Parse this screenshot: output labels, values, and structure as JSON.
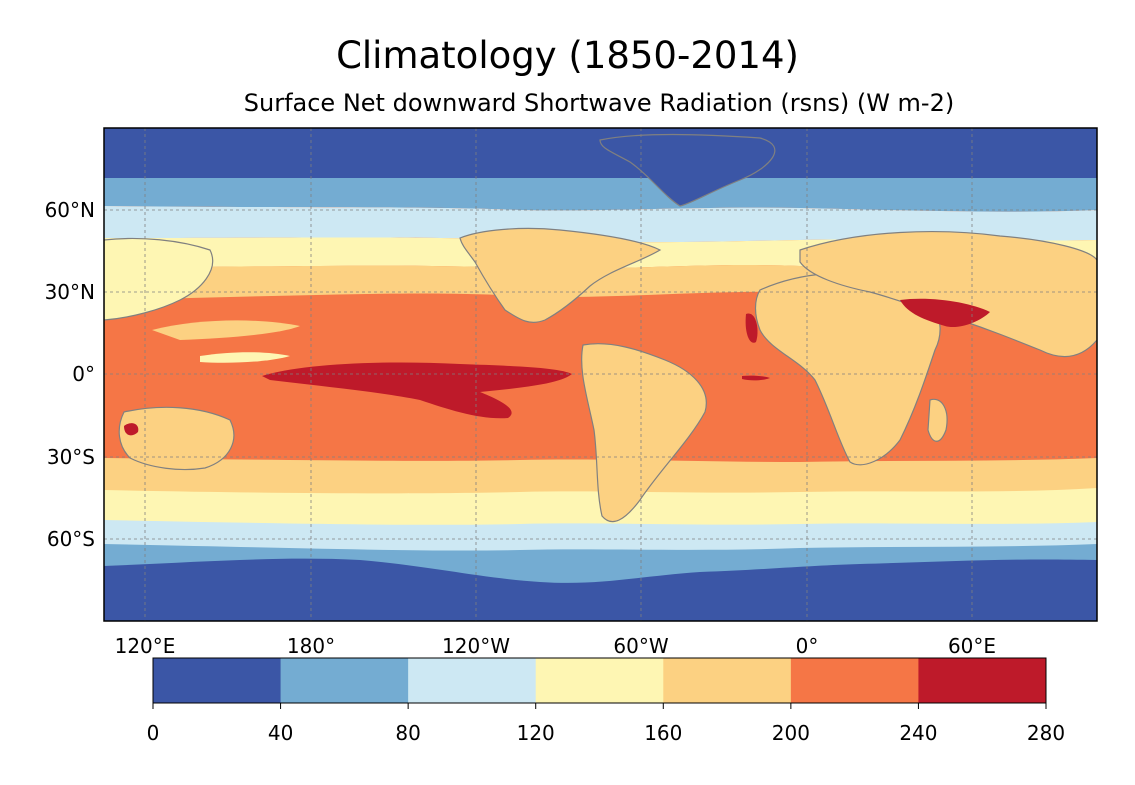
{
  "title": "Climatology (1850-2014)",
  "subtitle": "Surface Net downward Shortwave Radiation (rsns) (W m-2)",
  "lat_labels": [
    "60°N",
    "30°N",
    "0°",
    "30°S",
    "60°S"
  ],
  "lon_labels": [
    "120°E",
    "180°",
    "120°W",
    "60°W",
    "0°",
    "60°E"
  ],
  "colorbar": {
    "ticks": [
      "0",
      "40",
      "80",
      "120",
      "160",
      "200",
      "240",
      "280"
    ],
    "colors": [
      "#3b56a6",
      "#74acd2",
      "#cde8f3",
      "#fef6b3",
      "#fcd182",
      "#f57646",
      "#be1a2a"
    ]
  },
  "map_colors": {
    "coastline": "#808080",
    "gridline": "#808080",
    "frame": "#000000"
  }
}
